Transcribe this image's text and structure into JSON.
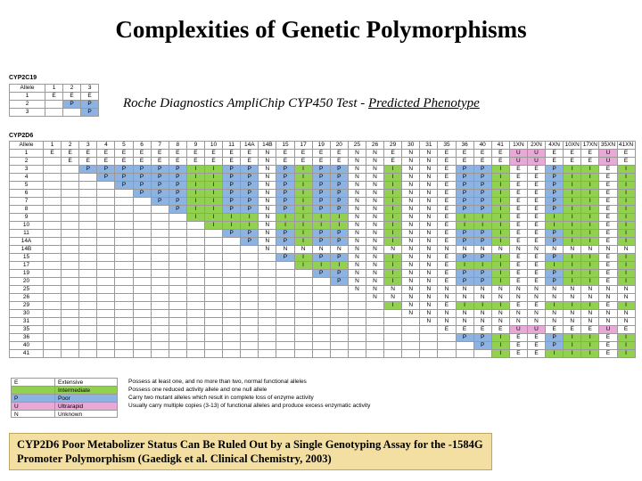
{
  "header": {
    "title": "Complexities of Genetic Polymorphisms",
    "subtitle": "Roche Diagnostics AmpliChip CYP450 Test - ",
    "subtitle_link": "Predicted Phenotype"
  },
  "cell_colors": {
    "E": "#ffffff",
    "I": "#92d050",
    "P": "#8db3e2",
    "U": "#e8a9d6",
    "N": "#ffffff"
  },
  "cyp2c19": {
    "label": "CYP2C19",
    "corner": "Allele",
    "columns": [
      "1",
      "2",
      "3"
    ],
    "rows": [
      {
        "allele": "1",
        "cells": [
          "E",
          "E",
          "E"
        ]
      },
      {
        "allele": "2",
        "cells": [
          null,
          "P",
          "P"
        ]
      },
      {
        "allele": "3",
        "cells": [
          null,
          null,
          "P"
        ]
      }
    ]
  },
  "cyp2d6": {
    "label": "CYP2D6",
    "corner": "Allele",
    "columns": [
      "1",
      "2",
      "3",
      "4",
      "5",
      "6",
      "7",
      "8",
      "9",
      "10",
      "11",
      "14A",
      "14B",
      "15",
      "17",
      "19",
      "20",
      "25",
      "26",
      "29",
      "30",
      "31",
      "35",
      "36",
      "40",
      "41",
      "1XN",
      "2XN",
      "4XN",
      "10XN",
      "17XN",
      "35XN",
      "41XN"
    ],
    "rows": [
      {
        "allele": "1",
        "cells": [
          "E",
          "E",
          "E",
          "E",
          "E",
          "E",
          "E",
          "E",
          "E",
          "E",
          "E",
          "E",
          "N",
          "E",
          "E",
          "E",
          "E",
          "N",
          "N",
          "E",
          "N",
          "N",
          "E",
          "E",
          "E",
          "E",
          "U",
          "U",
          "E",
          "E",
          "E",
          "U",
          "E"
        ]
      },
      {
        "allele": "2",
        "cells": [
          null,
          "E",
          "E",
          "E",
          "E",
          "E",
          "E",
          "E",
          "E",
          "E",
          "E",
          "E",
          "N",
          "E",
          "E",
          "E",
          "E",
          "N",
          "N",
          "E",
          "N",
          "N",
          "E",
          "E",
          "E",
          "E",
          "U",
          "U",
          "E",
          "E",
          "E",
          "U",
          "E"
        ]
      },
      {
        "allele": "3",
        "cells": [
          null,
          null,
          "P",
          "P",
          "P",
          "P",
          "P",
          "P",
          "I",
          "I",
          "P",
          "P",
          "N",
          "P",
          "I",
          "P",
          "P",
          "N",
          "N",
          "I",
          "N",
          "N",
          "E",
          "P",
          "P",
          "I",
          "E",
          "E",
          "P",
          "I",
          "I",
          "E",
          "I"
        ]
      },
      {
        "allele": "4",
        "cells": [
          null,
          null,
          null,
          "P",
          "P",
          "P",
          "P",
          "P",
          "I",
          "I",
          "P",
          "P",
          "N",
          "P",
          "I",
          "P",
          "P",
          "N",
          "N",
          "I",
          "N",
          "N",
          "E",
          "P",
          "P",
          "I",
          "E",
          "E",
          "P",
          "I",
          "I",
          "E",
          "I"
        ]
      },
      {
        "allele": "5",
        "cells": [
          null,
          null,
          null,
          null,
          "P",
          "P",
          "P",
          "P",
          "I",
          "I",
          "P",
          "P",
          "N",
          "P",
          "I",
          "P",
          "P",
          "N",
          "N",
          "I",
          "N",
          "N",
          "E",
          "P",
          "P",
          "I",
          "E",
          "E",
          "P",
          "I",
          "I",
          "E",
          "I"
        ]
      },
      {
        "allele": "6",
        "cells": [
          null,
          null,
          null,
          null,
          null,
          "P",
          "P",
          "P",
          "I",
          "I",
          "P",
          "P",
          "N",
          "P",
          "I",
          "P",
          "P",
          "N",
          "N",
          "I",
          "N",
          "N",
          "E",
          "P",
          "P",
          "I",
          "E",
          "E",
          "P",
          "I",
          "I",
          "E",
          "I"
        ]
      },
      {
        "allele": "7",
        "cells": [
          null,
          null,
          null,
          null,
          null,
          null,
          "P",
          "P",
          "I",
          "I",
          "P",
          "P",
          "N",
          "P",
          "I",
          "P",
          "P",
          "N",
          "N",
          "I",
          "N",
          "N",
          "E",
          "P",
          "P",
          "I",
          "E",
          "E",
          "P",
          "I",
          "I",
          "E",
          "I"
        ]
      },
      {
        "allele": "8",
        "cells": [
          null,
          null,
          null,
          null,
          null,
          null,
          null,
          "P",
          "I",
          "I",
          "P",
          "P",
          "N",
          "P",
          "I",
          "P",
          "P",
          "N",
          "N",
          "I",
          "N",
          "N",
          "E",
          "P",
          "P",
          "I",
          "E",
          "E",
          "P",
          "I",
          "I",
          "E",
          "I"
        ]
      },
      {
        "allele": "9",
        "cells": [
          null,
          null,
          null,
          null,
          null,
          null,
          null,
          null,
          "I",
          "I",
          "I",
          "I",
          "N",
          "I",
          "I",
          "I",
          "I",
          "N",
          "N",
          "I",
          "N",
          "N",
          "E",
          "I",
          "I",
          "I",
          "E",
          "E",
          "I",
          "I",
          "I",
          "E",
          "I"
        ]
      },
      {
        "allele": "10",
        "cells": [
          null,
          null,
          null,
          null,
          null,
          null,
          null,
          null,
          null,
          "I",
          "I",
          "I",
          "N",
          "I",
          "I",
          "I",
          "I",
          "N",
          "N",
          "I",
          "N",
          "N",
          "E",
          "I",
          "I",
          "I",
          "E",
          "E",
          "I",
          "I",
          "I",
          "E",
          "I"
        ]
      },
      {
        "allele": "11",
        "cells": [
          null,
          null,
          null,
          null,
          null,
          null,
          null,
          null,
          null,
          null,
          "P",
          "P",
          "N",
          "P",
          "I",
          "P",
          "P",
          "N",
          "N",
          "I",
          "N",
          "N",
          "E",
          "P",
          "P",
          "I",
          "E",
          "E",
          "P",
          "I",
          "I",
          "E",
          "I"
        ]
      },
      {
        "allele": "14A",
        "cells": [
          null,
          null,
          null,
          null,
          null,
          null,
          null,
          null,
          null,
          null,
          null,
          "P",
          "N",
          "P",
          "I",
          "P",
          "P",
          "N",
          "N",
          "I",
          "N",
          "N",
          "E",
          "P",
          "P",
          "I",
          "E",
          "E",
          "P",
          "I",
          "I",
          "E",
          "I"
        ]
      },
      {
        "allele": "14B",
        "cells": [
          null,
          null,
          null,
          null,
          null,
          null,
          null,
          null,
          null,
          null,
          null,
          null,
          "N",
          "N",
          "N",
          "N",
          "N",
          "N",
          "N",
          "N",
          "N",
          "N",
          "N",
          "N",
          "N",
          "N",
          "N",
          "N",
          "N",
          "N",
          "N",
          "N",
          "N"
        ]
      },
      {
        "allele": "15",
        "cells": [
          null,
          null,
          null,
          null,
          null,
          null,
          null,
          null,
          null,
          null,
          null,
          null,
          null,
          "P",
          "I",
          "P",
          "P",
          "N",
          "N",
          "I",
          "N",
          "N",
          "E",
          "P",
          "P",
          "I",
          "E",
          "E",
          "P",
          "I",
          "I",
          "E",
          "I"
        ]
      },
      {
        "allele": "17",
        "cells": [
          null,
          null,
          null,
          null,
          null,
          null,
          null,
          null,
          null,
          null,
          null,
          null,
          null,
          null,
          "I",
          "I",
          "I",
          "N",
          "N",
          "I",
          "N",
          "N",
          "E",
          "I",
          "I",
          "I",
          "E",
          "E",
          "I",
          "I",
          "I",
          "E",
          "I"
        ]
      },
      {
        "allele": "19",
        "cells": [
          null,
          null,
          null,
          null,
          null,
          null,
          null,
          null,
          null,
          null,
          null,
          null,
          null,
          null,
          null,
          "P",
          "P",
          "N",
          "N",
          "I",
          "N",
          "N",
          "E",
          "P",
          "P",
          "I",
          "E",
          "E",
          "P",
          "I",
          "I",
          "E",
          "I"
        ]
      },
      {
        "allele": "20",
        "cells": [
          null,
          null,
          null,
          null,
          null,
          null,
          null,
          null,
          null,
          null,
          null,
          null,
          null,
          null,
          null,
          null,
          "P",
          "N",
          "N",
          "I",
          "N",
          "N",
          "E",
          "P",
          "P",
          "I",
          "E",
          "E",
          "P",
          "I",
          "I",
          "E",
          "I"
        ]
      },
      {
        "allele": "25",
        "cells": [
          null,
          null,
          null,
          null,
          null,
          null,
          null,
          null,
          null,
          null,
          null,
          null,
          null,
          null,
          null,
          null,
          null,
          "N",
          "N",
          "N",
          "N",
          "N",
          "N",
          "N",
          "N",
          "N",
          "N",
          "N",
          "N",
          "N",
          "N",
          "N",
          "N"
        ]
      },
      {
        "allele": "26",
        "cells": [
          null,
          null,
          null,
          null,
          null,
          null,
          null,
          null,
          null,
          null,
          null,
          null,
          null,
          null,
          null,
          null,
          null,
          null,
          "N",
          "N",
          "N",
          "N",
          "N",
          "N",
          "N",
          "N",
          "N",
          "N",
          "N",
          "N",
          "N",
          "N",
          "N"
        ]
      },
      {
        "allele": "29",
        "cells": [
          null,
          null,
          null,
          null,
          null,
          null,
          null,
          null,
          null,
          null,
          null,
          null,
          null,
          null,
          null,
          null,
          null,
          null,
          null,
          "I",
          "N",
          "N",
          "E",
          "I",
          "I",
          "I",
          "E",
          "E",
          "I",
          "I",
          "I",
          "E",
          "I"
        ]
      },
      {
        "allele": "30",
        "cells": [
          null,
          null,
          null,
          null,
          null,
          null,
          null,
          null,
          null,
          null,
          null,
          null,
          null,
          null,
          null,
          null,
          null,
          null,
          null,
          null,
          "N",
          "N",
          "N",
          "N",
          "N",
          "N",
          "N",
          "N",
          "N",
          "N",
          "N",
          "N",
          "N"
        ]
      },
      {
        "allele": "31",
        "cells": [
          null,
          null,
          null,
          null,
          null,
          null,
          null,
          null,
          null,
          null,
          null,
          null,
          null,
          null,
          null,
          null,
          null,
          null,
          null,
          null,
          null,
          "N",
          "N",
          "N",
          "N",
          "N",
          "N",
          "N",
          "N",
          "N",
          "N",
          "N",
          "N"
        ]
      },
      {
        "allele": "35",
        "cells": [
          null,
          null,
          null,
          null,
          null,
          null,
          null,
          null,
          null,
          null,
          null,
          null,
          null,
          null,
          null,
          null,
          null,
          null,
          null,
          null,
          null,
          null,
          "E",
          "E",
          "E",
          "E",
          "U",
          "U",
          "E",
          "E",
          "E",
          "U",
          "E"
        ]
      },
      {
        "allele": "36",
        "cells": [
          null,
          null,
          null,
          null,
          null,
          null,
          null,
          null,
          null,
          null,
          null,
          null,
          null,
          null,
          null,
          null,
          null,
          null,
          null,
          null,
          null,
          null,
          null,
          "P",
          "P",
          "I",
          "E",
          "E",
          "P",
          "I",
          "I",
          "E",
          "I"
        ]
      },
      {
        "allele": "40",
        "cells": [
          null,
          null,
          null,
          null,
          null,
          null,
          null,
          null,
          null,
          null,
          null,
          null,
          null,
          null,
          null,
          null,
          null,
          null,
          null,
          null,
          null,
          null,
          null,
          null,
          "P",
          "I",
          "E",
          "E",
          "P",
          "I",
          "I",
          "E",
          "I"
        ]
      },
      {
        "allele": "41",
        "cells": [
          null,
          null,
          null,
          null,
          null,
          null,
          null,
          null,
          null,
          null,
          null,
          null,
          null,
          null,
          null,
          null,
          null,
          null,
          null,
          null,
          null,
          null,
          null,
          null,
          null,
          "I",
          "E",
          "E",
          "I",
          "I",
          "I",
          "E",
          "I"
        ]
      }
    ]
  },
  "legend": [
    {
      "code": "E",
      "label": "Extensive",
      "color": "#ffffff",
      "description": "Possess at least one, and no more than two, normal functional alleles"
    },
    {
      "label": "Intermediate",
      "color": "#92d050",
      "description": "Possess one reduced activity allele and one null allele"
    },
    {
      "code": "P",
      "label": "Poor",
      "color": "#8db3e2",
      "description": "Carry two mutant alleles which result in complete loss of enzyme activity"
    },
    {
      "code": "U",
      "label": "Ultrarapid",
      "color": "#e8a9d6",
      "description": "Usually carry multiple copies (3-13) of functional alleles and produce excess enzymatic activity"
    },
    {
      "code": "N",
      "label": "Unknown",
      "color": "#ffffff"
    }
  ],
  "footer": "CYP2D6 Poor Metabolizer Status Can Be Ruled Out by a Single Genotyping Assay for the -1584G Promoter Polymorphism (Gaedigk et al. Clinical Chemistry, 2003)"
}
